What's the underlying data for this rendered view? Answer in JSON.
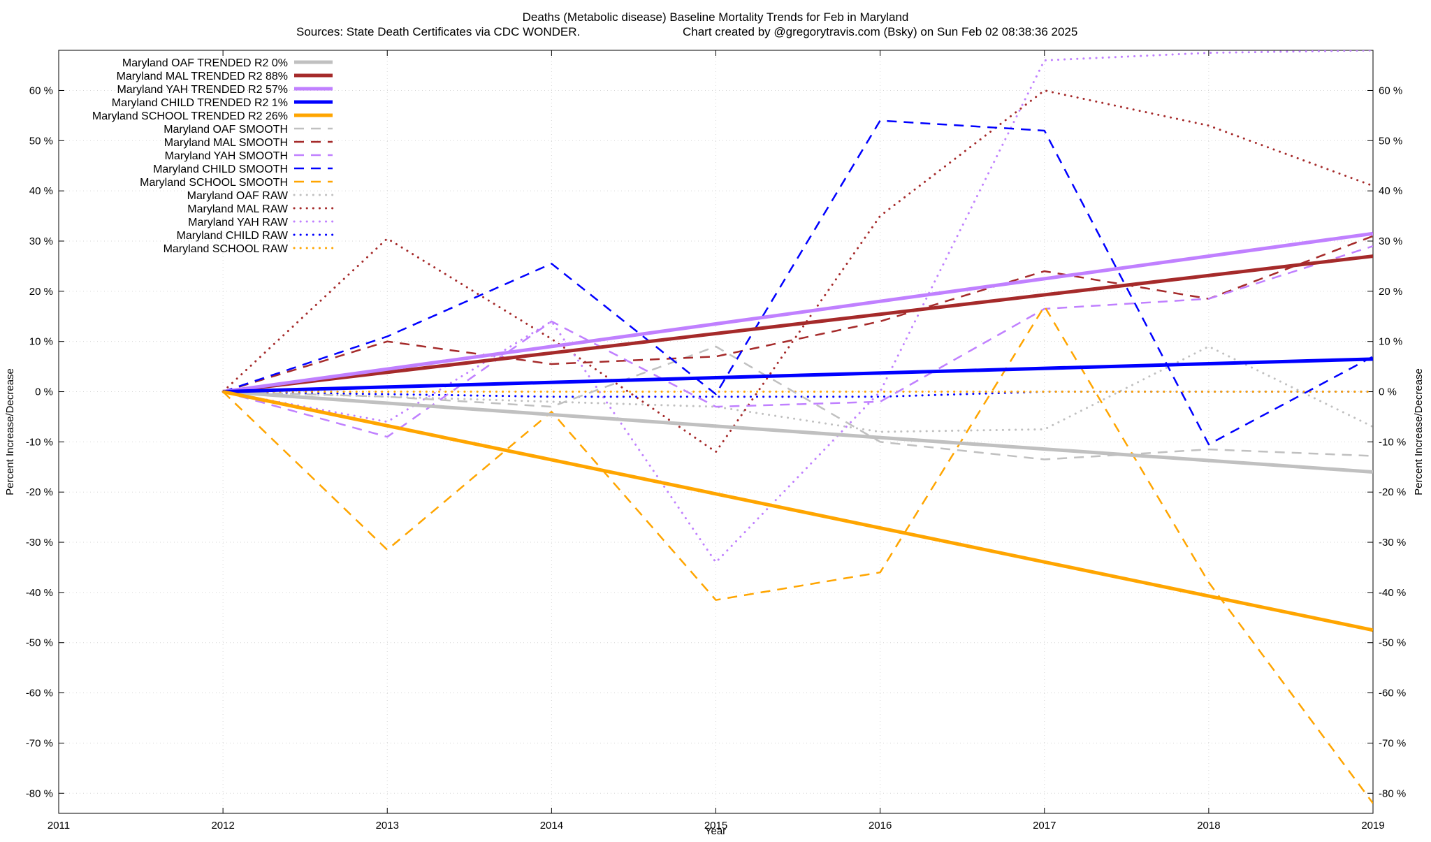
{
  "chart_data": {
    "type": "line",
    "title": "Deaths (Metabolic disease)  Baseline Mortality Trends for Feb in Maryland",
    "subtitle_left": "Sources: State Death Certificates via CDC WONDER.",
    "subtitle_right": "Chart created by @gregorytravis.com (Bsky) on Sun Feb 02 08:38:36 2025",
    "xlabel": "Year",
    "ylabel": "Percent Increase/Decrease",
    "y2label": "Percent Increase/Decrease",
    "xlim": [
      2011,
      2019
    ],
    "ylim": [
      -84,
      68
    ],
    "x_ticks": [
      2011,
      2012,
      2013,
      2014,
      2015,
      2016,
      2017,
      2018,
      2019
    ],
    "x_tick_labels": [
      "2011",
      "2012",
      "2013",
      "2014",
      "2015",
      "2016",
      "2017",
      "2018",
      "2019"
    ],
    "y_ticks": [
      60,
      50,
      40,
      30,
      20,
      10,
      0,
      -10,
      -20,
      -30,
      -40,
      -50,
      -60,
      -70,
      -80
    ],
    "y_tick_labels": [
      "60 %",
      "50 %",
      "40 %",
      "30 %",
      "20 %",
      "10 %",
      "0 %",
      "-10 %",
      "-20 %",
      "-30 %",
      "-40 %",
      "-50 %",
      "-60 %",
      "-70 %",
      "-80 %"
    ],
    "grid": true,
    "legend_position": "top-left",
    "series": [
      {
        "name": "Maryland OAF TRENDED R2  0%",
        "style": "solid",
        "color": "#c0c0c0",
        "x": [
          2012,
          2019
        ],
        "y": [
          0,
          -16
        ]
      },
      {
        "name": "Maryland MAL TRENDED R2  88%",
        "style": "solid",
        "color": "#a52a2a",
        "x": [
          2012,
          2019
        ],
        "y": [
          0,
          27
        ]
      },
      {
        "name": "Maryland YAH TRENDED R2  57%",
        "style": "solid",
        "color": "#c080ff",
        "x": [
          2012,
          2019
        ],
        "y": [
          0,
          31.5
        ]
      },
      {
        "name": "Maryland CHILD TRENDED R2  1%",
        "style": "solid",
        "color": "#0000ff",
        "x": [
          2012,
          2019
        ],
        "y": [
          0,
          6.5
        ]
      },
      {
        "name": "Maryland SCHOOL TRENDED R2  26%",
        "style": "solid",
        "color": "#ffa500",
        "x": [
          2012,
          2019
        ],
        "y": [
          0,
          -47.5
        ]
      },
      {
        "name": "Maryland OAF SMOOTH",
        "style": "dash",
        "color": "#c0c0c0",
        "x": [
          2012,
          2013,
          2014,
          2015,
          2016,
          2017,
          2018,
          2019
        ],
        "y": [
          0,
          -1,
          -3,
          9,
          -10,
          -13.5,
          -11.5,
          -12.8
        ]
      },
      {
        "name": "Maryland MAL SMOOTH",
        "style": "dash",
        "color": "#a52a2a",
        "x": [
          2012,
          2013,
          2014,
          2015,
          2016,
          2017,
          2018,
          2019
        ],
        "y": [
          0,
          10,
          5.5,
          7,
          14,
          24,
          18.5,
          31
        ]
      },
      {
        "name": "Maryland YAH SMOOTH",
        "style": "dash",
        "color": "#c080ff",
        "x": [
          2012,
          2013,
          2014,
          2015,
          2016,
          2017,
          2018,
          2019
        ],
        "y": [
          0,
          -9,
          14,
          -3,
          -2,
          16.5,
          18.5,
          29
        ]
      },
      {
        "name": "Maryland CHILD SMOOTH",
        "style": "dash",
        "color": "#0000ff",
        "x": [
          2012,
          2013,
          2014,
          2015,
          2016,
          2017,
          2018,
          2019
        ],
        "y": [
          0,
          11,
          25.5,
          -0.5,
          54,
          52,
          -10.5,
          7
        ]
      },
      {
        "name": "Maryland SCHOOL SMOOTH",
        "style": "dash",
        "color": "#ffa500",
        "x": [
          2012,
          2013,
          2014,
          2015,
          2016,
          2017,
          2018,
          2019
        ],
        "y": [
          0,
          -31.5,
          -4,
          -41.5,
          -36,
          17,
          -38,
          -82
        ]
      },
      {
        "name": "Maryland OAF RAW",
        "style": "dot",
        "color": "#c0c0c0",
        "x": [
          2012,
          2013,
          2014,
          2015,
          2016,
          2017,
          2018,
          2019
        ],
        "y": [
          0,
          -1,
          -2,
          -3,
          -8,
          -7.5,
          9,
          -7
        ]
      },
      {
        "name": "Maryland MAL RAW",
        "style": "dot",
        "color": "#a52a2a",
        "x": [
          2012,
          2013,
          2014,
          2015,
          2016,
          2017,
          2018,
          2019
        ],
        "y": [
          0,
          30.5,
          10.5,
          -12,
          35,
          60,
          53,
          41
        ]
      },
      {
        "name": "Maryland YAH RAW",
        "style": "dot",
        "color": "#c080ff",
        "x": [
          2012,
          2013,
          2014,
          2015,
          2016,
          2017,
          2018,
          2019
        ],
        "y": [
          0,
          -6,
          14,
          -34,
          0,
          66,
          67.5,
          68
        ]
      },
      {
        "name": "Maryland CHILD RAW",
        "style": "dot",
        "color": "#0000ff",
        "x": [
          2012,
          2013,
          2014,
          2015,
          2016,
          2017,
          2018,
          2019
        ],
        "y": [
          0,
          -0.5,
          -1,
          -1,
          -1,
          0,
          0,
          0
        ]
      },
      {
        "name": "Maryland SCHOOL RAW",
        "style": "dot",
        "color": "#ffa500",
        "x": [
          2012,
          2013,
          2014,
          2015,
          2016,
          2017,
          2018,
          2019
        ],
        "y": [
          0,
          0,
          0,
          0,
          0,
          0,
          0,
          0
        ]
      }
    ]
  }
}
